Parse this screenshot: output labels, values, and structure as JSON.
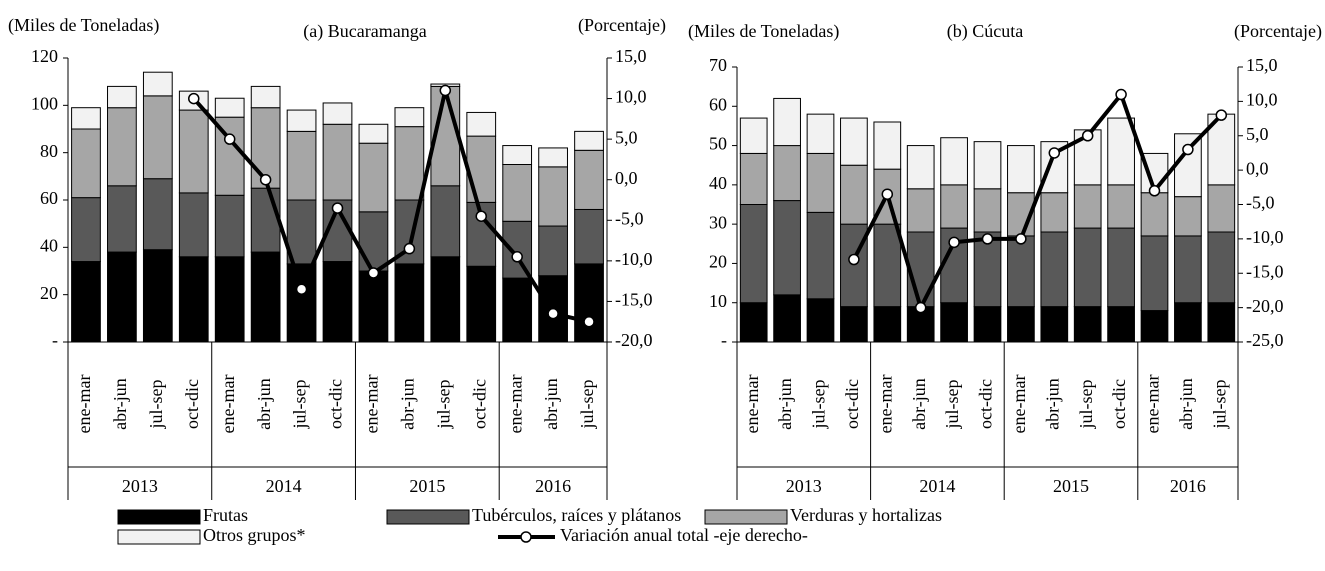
{
  "chart_data": [
    {
      "type": "bar",
      "title": "(a) Bucaramanga",
      "y_label": "(Miles de Toneladas)",
      "y2_label": "(Porcentaje)",
      "groups": [
        {
          "name": "2013",
          "categories": [
            "ene-mar",
            "abr-jun",
            "jul-sep",
            "oct-dic"
          ]
        },
        {
          "name": "2014",
          "categories": [
            "ene-mar",
            "abr-jun",
            "jul-sep",
            "oct-dic"
          ]
        },
        {
          "name": "2015",
          "categories": [
            "ene-mar",
            "abr-jun",
            "jul-sep",
            "oct-dic"
          ]
        },
        {
          "name": "2016",
          "categories": [
            "ene-mar",
            "abr-jun",
            "jul-sep"
          ]
        }
      ],
      "series": [
        {
          "name": "Frutas",
          "color": "#000000",
          "values": [
            34,
            38,
            39,
            36,
            36,
            38,
            33,
            34,
            30,
            33,
            36,
            32,
            27,
            28,
            33
          ]
        },
        {
          "name": "Tubérculos, raíces y plátanos",
          "color": "#595959",
          "values": [
            27,
            28,
            30,
            27,
            26,
            27,
            27,
            26,
            25,
            27,
            30,
            27,
            24,
            21,
            23
          ]
        },
        {
          "name": "Verduras y hortalizas",
          "color": "#a6a6a6",
          "values": [
            29,
            33,
            35,
            35,
            33,
            34,
            29,
            32,
            29,
            31,
            42,
            28,
            24,
            25,
            25
          ]
        },
        {
          "name": "Otros grupos*",
          "color": "#f2f2f2",
          "values": [
            9,
            9,
            10,
            8,
            8,
            9,
            9,
            9,
            8,
            8,
            1,
            10,
            8,
            8,
            8
          ]
        },
        {
          "name": "Variación anual total -eje derecho-",
          "type": "line",
          "axis": "y2",
          "color": "#000000",
          "values": [
            null,
            null,
            null,
            10,
            5,
            0,
            -13.5,
            -3.5,
            -11.5,
            -8.5,
            11,
            -4.5,
            -9.5,
            -16.5,
            -17.5
          ]
        }
      ],
      "ylim": [
        0,
        120
      ],
      "yticks": [
        {
          "value": 0,
          "label": "-"
        },
        20,
        40,
        60,
        80,
        100,
        120
      ],
      "y2lim": [
        -20,
        15
      ],
      "y2ticks": [
        {
          "value": -20,
          "label": "-20,0"
        },
        {
          "value": -15,
          "label": "-15,0"
        },
        {
          "value": -10,
          "label": "-10,0"
        },
        {
          "value": -5,
          "label": "-5,0"
        },
        {
          "value": 0,
          "label": "0,0"
        },
        {
          "value": 5,
          "label": "5,0"
        },
        {
          "value": 10,
          "label": "10,0"
        },
        {
          "value": 15,
          "label": "15,0"
        }
      ],
      "legend": "bottom"
    },
    {
      "type": "bar",
      "title": "(b) Cúcuta",
      "y_label": "(Miles de Toneladas)",
      "y2_label": "(Porcentaje)",
      "groups": [
        {
          "name": "2013",
          "categories": [
            "ene-mar",
            "abr-jun",
            "jul-sep",
            "oct-dic"
          ]
        },
        {
          "name": "2014",
          "categories": [
            "ene-mar",
            "abr-jun",
            "jul-sep",
            "oct-dic"
          ]
        },
        {
          "name": "2015",
          "categories": [
            "ene-mar",
            "abr-jun",
            "jul-sep",
            "oct-dic"
          ]
        },
        {
          "name": "2016",
          "categories": [
            "ene-mar",
            "abr-jun",
            "jul-sep"
          ]
        }
      ],
      "series": [
        {
          "name": "Frutas",
          "color": "#000000",
          "values": [
            10,
            12,
            11,
            9,
            9,
            9,
            10,
            9,
            9,
            9,
            9,
            9,
            8,
            10,
            10
          ]
        },
        {
          "name": "Tubérculos, raíces y plátanos",
          "color": "#595959",
          "values": [
            25,
            24,
            22,
            21,
            21,
            19,
            19,
            19,
            18,
            19,
            20,
            20,
            19,
            17,
            18
          ]
        },
        {
          "name": "Verduras y hortalizas",
          "color": "#a6a6a6",
          "values": [
            13,
            14,
            15,
            15,
            14,
            11,
            11,
            11,
            11,
            10,
            11,
            11,
            11,
            10,
            12
          ]
        },
        {
          "name": "Otros grupos*",
          "color": "#f2f2f2",
          "values": [
            9,
            12,
            10,
            12,
            12,
            11,
            12,
            12,
            12,
            13,
            14,
            17,
            10,
            16,
            18
          ]
        },
        {
          "name": "Variación anual total -eje derecho-",
          "type": "line",
          "axis": "y2",
          "color": "#000000",
          "values": [
            null,
            null,
            null,
            -13,
            -3.5,
            -20,
            -10.5,
            -10,
            -10,
            2.5,
            5,
            11,
            -3,
            3,
            8
          ]
        }
      ],
      "ylim": [
        0,
        70
      ],
      "yticks": [
        {
          "value": 0,
          "label": "-"
        },
        10,
        20,
        30,
        40,
        50,
        60,
        70
      ],
      "y2lim": [
        -25,
        15
      ],
      "y2ticks": [
        {
          "value": -25,
          "label": "-25,0"
        },
        {
          "value": -20,
          "label": "-20,0"
        },
        {
          "value": -15,
          "label": "-15,0"
        },
        {
          "value": -10,
          "label": "-10,0"
        },
        {
          "value": -5,
          "label": "-5,0"
        },
        {
          "value": 0,
          "label": "0,0"
        },
        {
          "value": 5,
          "label": "5,0"
        },
        {
          "value": 10,
          "label": "10,0"
        },
        {
          "value": 15,
          "label": "15,0"
        }
      ]
    }
  ]
}
